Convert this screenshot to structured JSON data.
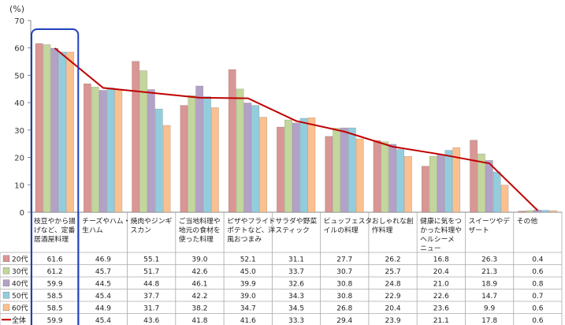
{
  "chart_data": {
    "type": "bar",
    "y_unit": "(%)",
    "ylim": [
      0,
      70
    ],
    "yticks": [
      0,
      10,
      20,
      30,
      40,
      50,
      60,
      70
    ],
    "grid": false,
    "legend_placement": "table-left",
    "categories": [
      [
        "枝豆やから揚",
        "げなど、定番",
        "居酒屋料理"
      ],
      [
        "チーズやハム・",
        "生ハム"
      ],
      [
        "焼肉やジンギ",
        "スカン"
      ],
      [
        "ご当地料理や",
        "地元の食材を",
        "使った料理"
      ],
      [
        "ピザやフライド",
        "ポテトなど、洋",
        "風おつまみ"
      ],
      [
        "サラダや野菜",
        "スティック"
      ],
      [
        "ビュッフェスタ",
        "イルの料理"
      ],
      [
        "おしゃれな創",
        "作料理"
      ],
      [
        "健康に気をつ",
        "かった料理や",
        "ヘルシーメ",
        "ニュー"
      ],
      [
        "スイーツやデ",
        "ザート"
      ],
      [
        "その他"
      ]
    ],
    "series": [
      {
        "name": "20代",
        "type": "bar",
        "color": "#d99694",
        "values": [
          61.6,
          46.9,
          55.1,
          39.0,
          52.1,
          31.1,
          27.7,
          26.2,
          16.8,
          26.3,
          0.4
        ]
      },
      {
        "name": "30代",
        "type": "bar",
        "color": "#c3d69b",
        "values": [
          61.2,
          45.7,
          51.7,
          42.6,
          45.0,
          33.7,
          30.7,
          25.7,
          20.4,
          21.3,
          0.6
        ]
      },
      {
        "name": "40代",
        "type": "bar",
        "color": "#b3a2c7",
        "values": [
          59.9,
          44.5,
          44.8,
          46.1,
          39.9,
          32.6,
          30.8,
          24.8,
          21.0,
          18.9,
          0.8
        ]
      },
      {
        "name": "50代",
        "type": "bar",
        "color": "#93cddd",
        "values": [
          58.5,
          45.4,
          37.7,
          42.2,
          39.0,
          34.3,
          30.8,
          22.9,
          22.6,
          14.7,
          0.7
        ]
      },
      {
        "name": "60代",
        "type": "bar",
        "color": "#fac090",
        "values": [
          58.5,
          44.9,
          31.7,
          38.2,
          34.7,
          34.5,
          26.8,
          20.4,
          23.6,
          9.9,
          0.6
        ]
      },
      {
        "name": "全体",
        "type": "line",
        "color": "#c00000",
        "values": [
          59.9,
          45.4,
          43.6,
          41.8,
          41.6,
          33.3,
          29.4,
          23.9,
          21.1,
          17.8,
          0.6
        ]
      }
    ],
    "highlight_category": 0,
    "highlight_color": "#1f3fbf"
  }
}
